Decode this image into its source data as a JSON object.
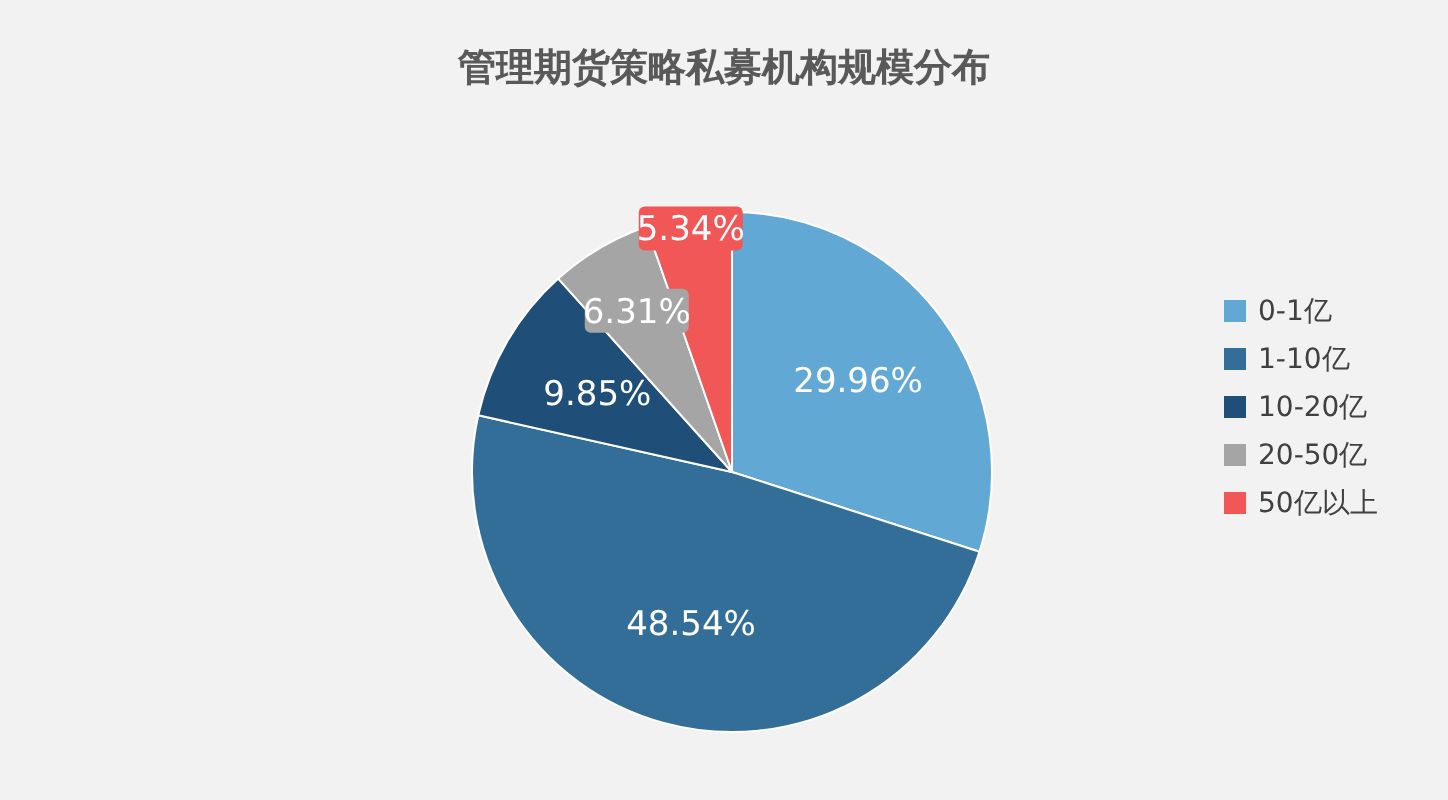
{
  "chart_data": {
    "type": "pie",
    "title": "管理期货策略私募机构规模分布",
    "categories": [
      "0-1亿",
      "1-10亿",
      "10-20亿",
      "20-50亿",
      "50亿以上"
    ],
    "values": [
      29.96,
      48.54,
      9.85,
      6.31,
      5.34
    ],
    "colors": [
      "#62a8d4",
      "#336e98",
      "#1f4e79",
      "#a5a5a5",
      "#f25757"
    ],
    "value_labels": [
      "29.96%",
      "48.54%",
      "9.85%",
      "6.31%",
      "5.34%"
    ],
    "legend": "right"
  }
}
